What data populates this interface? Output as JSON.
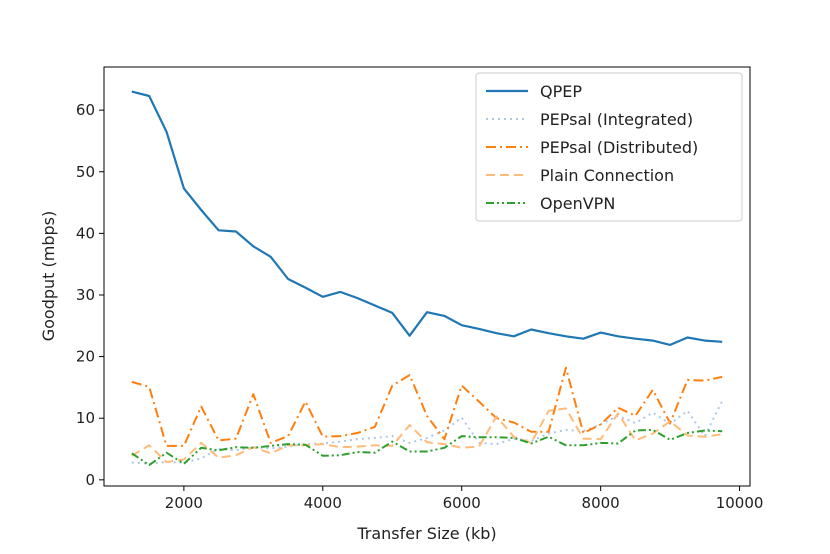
{
  "chart_data": {
    "type": "line",
    "title": "",
    "xlabel": "Transfer Size (kb)",
    "ylabel": "Goodput (mbps)",
    "xlim": [
      850,
      10150
    ],
    "ylim": [
      -1,
      67
    ],
    "xticks": [
      2000,
      4000,
      6000,
      8000,
      10000
    ],
    "yticks": [
      0,
      10,
      20,
      30,
      40,
      50,
      60
    ],
    "legend_position": "top-right",
    "x": [
      1250,
      1500,
      1750,
      2000,
      2250,
      2500,
      2750,
      3000,
      3250,
      3500,
      3750,
      4000,
      4250,
      4500,
      4750,
      5000,
      5250,
      5500,
      5750,
      6000,
      6250,
      6500,
      6750,
      7000,
      7250,
      7500,
      7750,
      8000,
      8250,
      8500,
      8750,
      9000,
      9250,
      9500,
      9750
    ],
    "series": [
      {
        "name": "QPEP",
        "color": "#1f77b4",
        "style": "solid",
        "values": [
          63.0,
          62.3,
          56.5,
          47.3,
          43.8,
          40.5,
          40.3,
          37.9,
          36.2,
          32.6,
          31.2,
          29.7,
          30.5,
          29.5,
          28.3,
          27.1,
          23.4,
          27.2,
          26.6,
          25.1,
          24.5,
          23.8,
          23.3,
          24.4,
          23.8,
          23.3,
          22.9,
          23.9,
          23.3,
          22.9,
          22.6,
          21.9,
          23.1,
          22.6,
          22.4
        ]
      },
      {
        "name": "PEPsal (Integrated)",
        "color": "#aec7e8",
        "style": "dotted",
        "values": [
          2.8,
          2.6,
          2.9,
          2.8,
          3.5,
          5.0,
          4.8,
          5.3,
          5.1,
          5.4,
          5.8,
          5.9,
          6.2,
          6.6,
          6.8,
          7.1,
          6.0,
          6.8,
          8.0,
          10.1,
          6.0,
          5.8,
          6.7,
          6.3,
          7.5,
          8.1,
          7.9,
          9.0,
          10.4,
          9.2,
          10.9,
          9.1,
          11.2,
          7.1,
          12.8
        ]
      },
      {
        "name": "PEPsal (Distributed)",
        "color": "#ff7f0e",
        "style": "dashdot",
        "values": [
          15.9,
          15.1,
          5.5,
          5.5,
          11.9,
          6.4,
          6.7,
          13.9,
          6.0,
          7.1,
          12.7,
          7.0,
          7.1,
          7.6,
          8.6,
          15.3,
          17.0,
          10.4,
          6.6,
          15.3,
          12.7,
          10.0,
          9.3,
          7.8,
          7.8,
          18.2,
          7.6,
          9.0,
          11.7,
          10.4,
          14.6,
          9.2,
          16.2,
          16.1,
          16.7
        ]
      },
      {
        "name": "Plain Connection",
        "color": "#ffbb78",
        "style": "dashed",
        "values": [
          3.9,
          5.6,
          2.9,
          3.3,
          6.0,
          3.6,
          4.0,
          5.3,
          4.3,
          5.6,
          5.6,
          5.8,
          5.3,
          5.4,
          5.6,
          5.5,
          8.9,
          6.1,
          5.8,
          5.2,
          5.4,
          10.3,
          7.0,
          6.0,
          11.2,
          11.6,
          6.7,
          6.6,
          10.8,
          6.4,
          7.5,
          9.5,
          7.2,
          7.0,
          7.4
        ]
      },
      {
        "name": "OpenVPN",
        "color": "#2ca02c",
        "style": "dashdotdot",
        "values": [
          4.3,
          2.4,
          4.4,
          2.6,
          5.2,
          4.8,
          5.3,
          5.2,
          5.5,
          5.8,
          5.7,
          3.9,
          4.0,
          4.5,
          4.4,
          6.2,
          4.6,
          4.6,
          5.2,
          7.1,
          6.9,
          6.9,
          6.8,
          5.9,
          7.0,
          5.6,
          5.6,
          6.0,
          5.9,
          8.0,
          8.1,
          6.5,
          7.6,
          8.0,
          7.9
        ]
      }
    ]
  }
}
